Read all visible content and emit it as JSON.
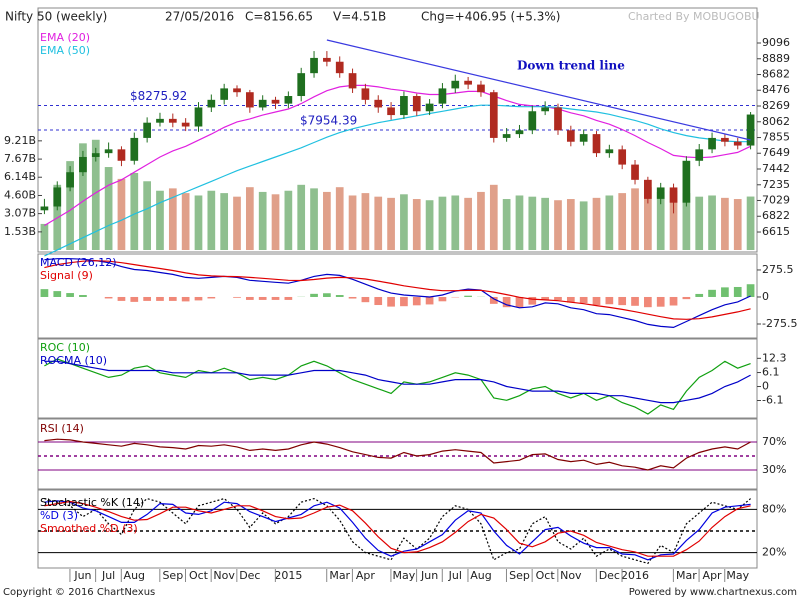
{
  "header": {
    "date": "27/05/2016",
    "close": "C=8156.65",
    "volume": "V=4.51B",
    "change": "Chg=+406.95 (+5.3%)",
    "credit": "Charted By MOBUGOBU"
  },
  "footer": {
    "copyright": "Copyright © 2016 ChartNexus",
    "powered": "Powered by www.chartnexus.com"
  },
  "chart_data": [
    {
      "type": "candlestick",
      "title": "Nifty 50 (weekly)",
      "categories": [
        null,
        null,
        null,
        "Jun",
        null,
        "Jul",
        null,
        "Aug",
        null,
        null,
        "Sep",
        null,
        "Oct",
        null,
        "Nov",
        null,
        "Dec",
        null,
        null,
        "2015",
        null,
        null,
        null,
        "Mar",
        null,
        "Apr",
        null,
        null,
        "May",
        null,
        "Jun",
        null,
        "Jul",
        null,
        "Aug",
        null,
        null,
        "Sep",
        null,
        "Oct",
        null,
        "Nov",
        null,
        null,
        "Dec",
        null,
        "2016",
        null,
        null,
        null,
        "Mar",
        null,
        "Apr",
        null,
        "May",
        null
      ],
      "open": [
        6900,
        6950,
        7200,
        7400,
        7600,
        7650,
        7700,
        7550,
        7850,
        8050,
        8100,
        8050,
        8000,
        8250,
        8350,
        8500,
        8450,
        8250,
        8350,
        8300,
        8400,
        8700,
        8900,
        8850,
        8700,
        8500,
        8350,
        8250,
        8150,
        8400,
        8200,
        8300,
        8500,
        8600,
        8550,
        8450,
        7850,
        7900,
        7950,
        8200,
        8250,
        7950,
        7800,
        7900,
        7650,
        7700,
        7500,
        7300,
        7050,
        7200,
        7000,
        7550,
        7700,
        7850,
        7800,
        7750
      ],
      "high": [
        7050,
        7280,
        7480,
        7680,
        7720,
        7790,
        7740,
        7920,
        8120,
        8180,
        8170,
        8110,
        8320,
        8420,
        8560,
        8540,
        8480,
        8410,
        8390,
        8460,
        8770,
        8990,
        8990,
        8920,
        8760,
        8560,
        8410,
        8320,
        8460,
        8430,
        8360,
        8570,
        8680,
        8650,
        8600,
        8480,
        7980,
        8020,
        8270,
        8330,
        8300,
        8010,
        7960,
        7940,
        7760,
        7750,
        7560,
        7340,
        7260,
        7250,
        7610,
        7770,
        7920,
        7900,
        7850,
        8190
      ],
      "low": [
        6850,
        6900,
        7150,
        7350,
        7540,
        7590,
        7480,
        7500,
        7790,
        8000,
        7990,
        7940,
        7930,
        8190,
        8290,
        8390,
        8180,
        8210,
        8230,
        8240,
        8330,
        8640,
        8790,
        8640,
        8440,
        8290,
        8180,
        8090,
        8100,
        8140,
        8150,
        8240,
        8440,
        8490,
        8390,
        7790,
        7800,
        7850,
        7900,
        8150,
        7890,
        7740,
        7750,
        7600,
        7590,
        7440,
        7240,
        6990,
        6980,
        6860,
        6950,
        7480,
        7650,
        7740,
        7700,
        7700
      ],
      "close": [
        6950,
        7200,
        7400,
        7600,
        7650,
        7700,
        7550,
        7850,
        8050,
        8100,
        8050,
        8000,
        8250,
        8350,
        8500,
        8450,
        8250,
        8350,
        8300,
        8400,
        8700,
        8900,
        8850,
        8700,
        8500,
        8350,
        8250,
        8150,
        8400,
        8200,
        8300,
        8500,
        8600,
        8550,
        8450,
        7850,
        7900,
        7950,
        8200,
        8250,
        7950,
        7800,
        7900,
        7650,
        7700,
        7500,
        7300,
        7050,
        7200,
        7000,
        7550,
        7700,
        7850,
        7800,
        7750,
        8157
      ],
      "up_color": "#1f6f1f",
      "down_color": "#b02a20",
      "ylim": [
        6379,
        9529
      ],
      "yticks": [
        9096,
        8889,
        8682,
        8476,
        8269,
        8062,
        7855,
        7649,
        7442,
        7235,
        7029,
        6822,
        6615
      ],
      "series": [
        {
          "name": "EMA (20)",
          "color": "#e020e0",
          "values": [
            6700,
            6800,
            6900,
            7020,
            7130,
            7230,
            7300,
            7400,
            7500,
            7600,
            7680,
            7740,
            7820,
            7900,
            7990,
            8060,
            8100,
            8150,
            8190,
            8230,
            8300,
            8390,
            8470,
            8520,
            8540,
            8540,
            8520,
            8490,
            8470,
            8440,
            8420,
            8420,
            8440,
            8460,
            8460,
            8400,
            8340,
            8290,
            8270,
            8260,
            8230,
            8180,
            8140,
            8080,
            8030,
            7960,
            7880,
            7790,
            7710,
            7620,
            7600,
            7590,
            7600,
            7630,
            7660,
            7740
          ]
        },
        {
          "name": "EMA (50)",
          "color": "#20c0e0",
          "values": [
            6300,
            6380,
            6460,
            6540,
            6620,
            6700,
            6770,
            6850,
            6920,
            7000,
            7070,
            7140,
            7210,
            7280,
            7350,
            7420,
            7480,
            7540,
            7600,
            7660,
            7720,
            7790,
            7860,
            7920,
            7970,
            8010,
            8050,
            8080,
            8110,
            8140,
            8170,
            8200,
            8230,
            8260,
            8280,
            8280,
            8270,
            8260,
            8260,
            8260,
            8250,
            8230,
            8210,
            8190,
            8160,
            8120,
            8080,
            8030,
            7970,
            7920,
            7880,
            7850,
            7830,
            7810,
            7800,
            7800
          ]
        }
      ],
      "volume": {
        "up_color": "#8fbf8f",
        "down_color": "#e0a08a",
        "ylim": [
          0,
          20.25
        ],
        "yticks": [
          {
            "value": 9.21,
            "label": "9.21B"
          },
          {
            "value": 7.67,
            "label": "7.67B"
          },
          {
            "value": 6.14,
            "label": "6.14B"
          },
          {
            "value": 4.6,
            "label": "4.60B"
          },
          {
            "value": 3.07,
            "label": "3.07B"
          },
          {
            "value": 1.53,
            "label": "1.53B"
          }
        ],
        "values": [
          2.2,
          5.5,
          7.5,
          9.0,
          9.3,
          7.0,
          6.0,
          6.5,
          5.8,
          5.0,
          5.2,
          4.8,
          4.6,
          5.0,
          4.8,
          4.5,
          5.3,
          4.9,
          4.7,
          5.0,
          5.5,
          5.2,
          4.9,
          5.3,
          4.6,
          4.8,
          4.5,
          4.4,
          4.7,
          4.3,
          4.2,
          4.5,
          4.6,
          4.4,
          4.9,
          5.5,
          4.3,
          4.6,
          4.5,
          4.4,
          4.2,
          4.3,
          4.1,
          4.4,
          4.6,
          4.8,
          5.2,
          5.3,
          4.9,
          5.0,
          4.8,
          4.5,
          4.6,
          4.4,
          4.3,
          4.51
        ]
      },
      "reference_lines": [
        {
          "value": 8275.92,
          "label": "$8275.92"
        },
        {
          "value": 7954.39,
          "label": "$7954.39"
        }
      ],
      "trend_line": {
        "label": "Down trend line",
        "color": "#3a3ae0",
        "x": [
          22,
          55
        ],
        "y": [
          9135,
          7823
        ]
      }
    },
    {
      "type": "line",
      "ylim": [
        -408,
        428
      ],
      "yticks": [
        275.5,
        0,
        -275.5
      ],
      "series": [
        {
          "name": "MACD (26,12)",
          "color": "#0000c8",
          "values": [
            380,
            390,
            390,
            385,
            370,
            350,
            310,
            280,
            270,
            250,
            230,
            200,
            190,
            200,
            210,
            200,
            170,
            160,
            150,
            140,
            170,
            210,
            230,
            220,
            180,
            130,
            80,
            40,
            20,
            10,
            0,
            20,
            60,
            80,
            70,
            -20,
            -80,
            -110,
            -100,
            -60,
            -70,
            -110,
            -130,
            -170,
            -180,
            -210,
            -240,
            -280,
            -300,
            -310,
            -250,
            -190,
            -130,
            -80,
            -50,
            10
          ]
        },
        {
          "name": "Signal (9)",
          "color": "#e00000",
          "values": [
            300,
            330,
            350,
            365,
            370,
            365,
            350,
            330,
            310,
            290,
            270,
            245,
            225,
            215,
            210,
            208,
            200,
            190,
            180,
            170,
            168,
            178,
            192,
            200,
            196,
            183,
            162,
            138,
            114,
            95,
            76,
            64,
            64,
            67,
            68,
            50,
            24,
            -3,
            -22,
            -30,
            -38,
            -53,
            -68,
            -88,
            -106,
            -127,
            -150,
            -176,
            -201,
            -223,
            -228,
            -221,
            -203,
            -178,
            -152,
            -120
          ]
        }
      ],
      "histogram": {
        "up_color": "#70c070",
        "down_color": "#f08878",
        "values": [
          80,
          60,
          40,
          20,
          0,
          -15,
          -40,
          -50,
          -40,
          -40,
          -40,
          -45,
          -35,
          -15,
          0,
          -8,
          -30,
          -30,
          -30,
          -30,
          2,
          32,
          38,
          20,
          -16,
          -53,
          -82,
          -98,
          -94,
          -85,
          -76,
          -44,
          -4,
          13,
          2,
          -70,
          -104,
          -107,
          -78,
          -30,
          -32,
          -57,
          -62,
          -82,
          -74,
          -83,
          -90,
          -104,
          -99,
          -87,
          -22,
          31,
          73,
          98,
          102,
          130
        ]
      }
    },
    {
      "type": "line",
      "ylim": [
        -13.3,
        20.3
      ],
      "yticks": [
        12.3,
        6.1,
        0,
        -6.1
      ],
      "series": [
        {
          "name": "ROC (10)",
          "color": "#10a010",
          "values": [
            9,
            12,
            10,
            8,
            6,
            4,
            5,
            8,
            9,
            6,
            5,
            4,
            7,
            6,
            8,
            6,
            3,
            4,
            3,
            5,
            9,
            11,
            9,
            6,
            3,
            1,
            -1,
            -3,
            2,
            1,
            2,
            4,
            6,
            5,
            3,
            -5,
            -6,
            -4,
            -1,
            0,
            -3,
            -5,
            -3,
            -6,
            -4,
            -7,
            -9,
            -12,
            -8,
            -10,
            -2,
            4,
            7,
            11,
            8,
            10
          ]
        },
        {
          "name": "ROCMA (10)",
          "color": "#0000c8",
          "values": [
            11,
            11,
            10,
            9,
            8,
            7,
            7,
            7,
            7,
            7,
            6,
            6,
            6,
            6,
            6,
            6,
            5,
            5,
            5,
            5,
            6,
            7,
            7,
            7,
            6,
            5,
            3,
            2,
            1,
            1,
            1,
            2,
            3,
            3,
            3,
            2,
            0,
            -1,
            -2,
            -2,
            -2,
            -3,
            -3,
            -3,
            -4,
            -4,
            -5,
            -6,
            -7,
            -7,
            -6,
            -5,
            -3,
            0,
            2,
            5
          ]
        }
      ]
    },
    {
      "type": "line",
      "ylim": [
        0,
        100
      ],
      "yticks": [
        {
          "value": 70,
          "label": "70%"
        },
        {
          "value": 30,
          "label": "30%"
        }
      ],
      "midline": 50,
      "level_color": "#800080",
      "series": [
        {
          "name": "RSI (14)",
          "color": "#800000",
          "values": [
            72,
            74,
            73,
            70,
            68,
            66,
            64,
            68,
            66,
            63,
            62,
            60,
            65,
            64,
            66,
            63,
            58,
            60,
            58,
            60,
            66,
            70,
            67,
            62,
            56,
            52,
            48,
            47,
            55,
            50,
            52,
            57,
            59,
            57,
            55,
            40,
            42,
            44,
            52,
            53,
            45,
            42,
            44,
            38,
            41,
            36,
            34,
            30,
            36,
            33,
            47,
            55,
            60,
            63,
            60,
            70
          ]
        }
      ]
    },
    {
      "type": "line",
      "ylim": [
        0,
        100
      ],
      "yticks": [
        {
          "value": 80,
          "label": "80%"
        },
        {
          "value": 20,
          "label": "20%"
        }
      ],
      "midline": 50,
      "level_color": "#000000",
      "series": [
        {
          "name": "Stochastic %K (14)",
          "color": "#000000",
          "dashed": true,
          "values": [
            95,
            90,
            85,
            70,
            80,
            60,
            45,
            80,
            95,
            90,
            75,
            60,
            85,
            90,
            95,
            80,
            55,
            75,
            60,
            70,
            90,
            95,
            85,
            65,
            35,
            20,
            15,
            10,
            40,
            25,
            40,
            70,
            85,
            80,
            60,
            10,
            20,
            25,
            60,
            70,
            35,
            25,
            40,
            15,
            25,
            15,
            10,
            5,
            30,
            20,
            60,
            75,
            90,
            85,
            80,
            95
          ]
        },
        {
          "name": "%D (3)",
          "color": "#0000e0",
          "values": [
            90,
            92,
            90,
            82,
            78,
            70,
            62,
            62,
            73,
            88,
            87,
            75,
            73,
            78,
            90,
            88,
            77,
            70,
            63,
            68,
            73,
            85,
            90,
            82,
            62,
            40,
            23,
            15,
            22,
            25,
            35,
            45,
            65,
            78,
            75,
            50,
            30,
            18,
            35,
            52,
            55,
            43,
            33,
            27,
            27,
            18,
            17,
            10,
            17,
            18,
            37,
            52,
            75,
            83,
            85,
            87
          ]
        },
        {
          "name": "Smoothed %D (3)",
          "color": "#e00000",
          "values": [
            85,
            88,
            91,
            88,
            83,
            77,
            70,
            65,
            66,
            74,
            83,
            83,
            78,
            75,
            80,
            85,
            85,
            78,
            70,
            67,
            68,
            75,
            83,
            86,
            78,
            61,
            42,
            26,
            20,
            21,
            27,
            35,
            48,
            63,
            73,
            68,
            52,
            33,
            28,
            35,
            47,
            50,
            44,
            34,
            29,
            24,
            21,
            15,
            15,
            15,
            24,
            36,
            55,
            70,
            81,
            85
          ]
        }
      ]
    }
  ]
}
